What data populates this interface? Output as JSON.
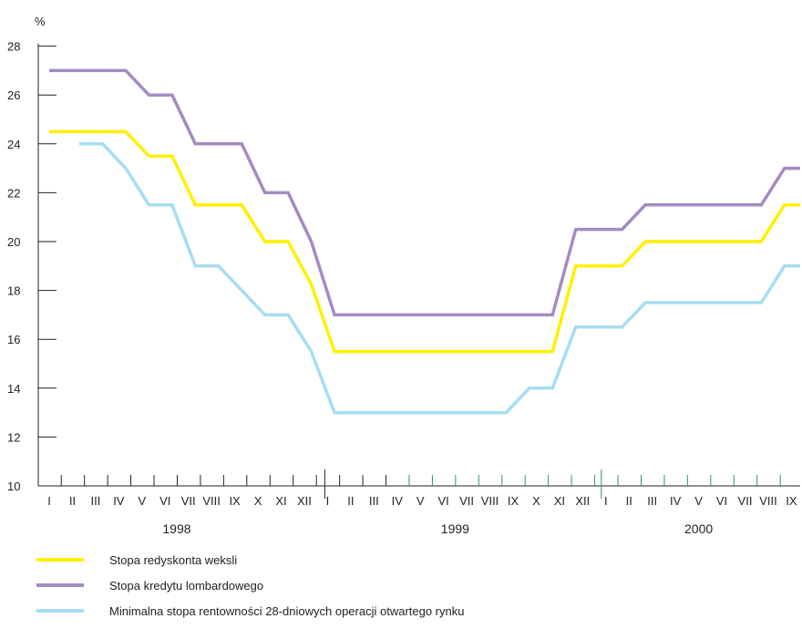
{
  "chart_data": {
    "type": "line",
    "unit_label": "%",
    "ylim": [
      10,
      28
    ],
    "yticks": [
      10,
      12,
      14,
      16,
      18,
      20,
      22,
      24,
      26,
      28
    ],
    "month_labels": [
      "I",
      "II",
      "III",
      "IV",
      "V",
      "VI",
      "VII",
      "VIII",
      "IX",
      "X",
      "XI",
      "XII",
      "I",
      "II",
      "III",
      "IV",
      "V",
      "VI",
      "VII",
      "VIII",
      "IX",
      "X",
      "XI",
      "XII",
      "I",
      "II",
      "III",
      "IV",
      "V",
      "VI",
      "VII",
      "VIII",
      "IX"
    ],
    "years": [
      {
        "label": "1998",
        "start_month": 0,
        "end_month": 11
      },
      {
        "label": "1999",
        "start_month": 12,
        "end_month": 23
      },
      {
        "label": "2000",
        "start_month": 24,
        "end_month": 32
      }
    ],
    "series": [
      {
        "name": "Stopa kredytu lombardowego",
        "color": "#a48bc1",
        "points": [
          [
            0,
            27
          ],
          [
            3.3,
            27
          ],
          [
            4.3,
            26
          ],
          [
            5.3,
            26
          ],
          [
            6.3,
            24
          ],
          [
            8.3,
            24
          ],
          [
            9.3,
            22
          ],
          [
            10.3,
            22
          ],
          [
            11.3,
            20
          ],
          [
            12.3,
            17
          ],
          [
            21.7,
            17
          ],
          [
            22.7,
            20.5
          ],
          [
            24.7,
            20.5
          ],
          [
            25.7,
            21.5
          ],
          [
            30.7,
            21.5
          ],
          [
            31.7,
            23
          ],
          [
            33,
            23
          ]
        ]
      },
      {
        "name": "Stopa redyskonta weksli",
        "color": "#fff000",
        "points": [
          [
            0,
            24.5
          ],
          [
            3.3,
            24.5
          ],
          [
            4.3,
            23.5
          ],
          [
            5.3,
            23.5
          ],
          [
            6.3,
            21.5
          ],
          [
            8.3,
            21.5
          ],
          [
            9.3,
            20
          ],
          [
            10.3,
            20
          ],
          [
            11.3,
            18.25
          ],
          [
            12.3,
            15.5
          ],
          [
            21.7,
            15.5
          ],
          [
            22.7,
            19
          ],
          [
            24.7,
            19
          ],
          [
            25.7,
            20
          ],
          [
            30.7,
            20
          ],
          [
            31.7,
            21.5
          ],
          [
            33,
            21.5
          ]
        ]
      },
      {
        "name": "Minimalna stopa rentowności 28-dniowych operacji otwartego rynku",
        "color": "#a6ddf2",
        "points": [
          [
            1.3,
            24
          ],
          [
            2.3,
            24
          ],
          [
            3.3,
            23
          ],
          [
            4.3,
            21.5
          ],
          [
            5.3,
            21.5
          ],
          [
            6.3,
            19
          ],
          [
            7.3,
            19
          ],
          [
            8.3,
            18
          ],
          [
            9.3,
            17
          ],
          [
            10.3,
            17
          ],
          [
            11.3,
            15.5
          ],
          [
            12.3,
            13
          ],
          [
            19.7,
            13
          ],
          [
            20.7,
            14
          ],
          [
            21.7,
            14
          ],
          [
            22.7,
            16.5
          ],
          [
            24.7,
            16.5
          ],
          [
            25.7,
            17.5
          ],
          [
            30.7,
            17.5
          ],
          [
            31.7,
            19
          ],
          [
            33,
            19
          ]
        ]
      }
    ],
    "legend": [
      {
        "label": "Stopa redyskonta weksli",
        "color": "#fff000"
      },
      {
        "label": "Stopa kredytu lombardowego",
        "color": "#a48bc1"
      },
      {
        "label": "Minimalna stopa rentowności 28-dniowych operacji otwartego rynku",
        "color": "#a6ddf2"
      }
    ],
    "axis_color": "#222222",
    "teal_tick_color": "#2f8f83"
  }
}
